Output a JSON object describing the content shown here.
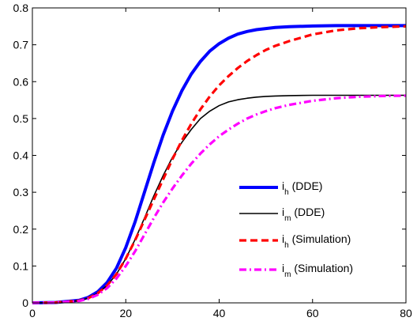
{
  "chart_data": {
    "type": "line",
    "title": "",
    "xlabel": "",
    "ylabel": "",
    "xlim": [
      0,
      80
    ],
    "ylim": [
      0,
      0.8
    ],
    "xticks": [
      0,
      20,
      40,
      60,
      80
    ],
    "yticks": [
      0,
      0.1,
      0.2,
      0.3,
      0.4,
      0.5,
      0.6,
      0.7,
      0.8
    ],
    "grid": false,
    "legend_position": "right",
    "series": [
      {
        "name_main": "i",
        "name_sub": "h",
        "name_suffix": " (DDE)",
        "color": "#0000ff",
        "style": "solid-thick",
        "x": [
          0,
          5,
          10,
          12,
          14,
          16,
          18,
          20,
          22,
          24,
          26,
          28,
          30,
          32,
          34,
          36,
          38,
          40,
          42,
          44,
          46,
          48,
          50,
          52,
          55,
          60,
          65,
          70,
          75,
          80
        ],
        "y": [
          0.0,
          0.001,
          0.007,
          0.015,
          0.03,
          0.055,
          0.094,
          0.15,
          0.22,
          0.3,
          0.38,
          0.455,
          0.52,
          0.575,
          0.62,
          0.655,
          0.683,
          0.703,
          0.718,
          0.729,
          0.736,
          0.741,
          0.744,
          0.747,
          0.749,
          0.751,
          0.752,
          0.752,
          0.752,
          0.752
        ]
      },
      {
        "name_main": "i",
        "name_sub": "m",
        "name_suffix": " (DDE)",
        "color": "#000000",
        "style": "solid-thin",
        "x": [
          0,
          5,
          10,
          12,
          14,
          16,
          18,
          20,
          22,
          24,
          26,
          28,
          30,
          32,
          34,
          36,
          38,
          40,
          42,
          44,
          46,
          48,
          50,
          52,
          55,
          60,
          65,
          70,
          75,
          80
        ],
        "y": [
          0.0,
          0.001,
          0.006,
          0.013,
          0.026,
          0.047,
          0.078,
          0.12,
          0.172,
          0.23,
          0.29,
          0.345,
          0.395,
          0.435,
          0.47,
          0.5,
          0.52,
          0.535,
          0.545,
          0.551,
          0.555,
          0.558,
          0.56,
          0.561,
          0.562,
          0.563,
          0.563,
          0.563,
          0.563,
          0.563
        ]
      },
      {
        "name_main": "i",
        "name_sub": "h",
        "name_suffix": " (Simulation)",
        "color": "#ff0000",
        "style": "dashed-thick",
        "x": [
          0,
          5,
          10,
          12,
          14,
          16,
          18,
          20,
          22,
          24,
          26,
          28,
          30,
          32,
          34,
          36,
          38,
          40,
          42,
          44,
          46,
          48,
          50,
          52,
          55,
          60,
          65,
          70,
          75,
          80
        ],
        "y": [
          0.0,
          0.001,
          0.006,
          0.013,
          0.026,
          0.047,
          0.078,
          0.12,
          0.17,
          0.225,
          0.28,
          0.335,
          0.39,
          0.44,
          0.485,
          0.525,
          0.56,
          0.59,
          0.615,
          0.637,
          0.656,
          0.672,
          0.686,
          0.697,
          0.71,
          0.728,
          0.739,
          0.745,
          0.748,
          0.75
        ]
      },
      {
        "name_main": "i",
        "name_sub": "m",
        "name_suffix": " (Simulation)",
        "color": "#ff00ff",
        "style": "dashdot-thick",
        "x": [
          0,
          5,
          10,
          12,
          14,
          16,
          18,
          20,
          22,
          24,
          26,
          28,
          30,
          32,
          34,
          36,
          38,
          40,
          42,
          44,
          46,
          48,
          50,
          52,
          55,
          60,
          65,
          70,
          75,
          80
        ],
        "y": [
          0.0,
          0.001,
          0.005,
          0.011,
          0.022,
          0.04,
          0.066,
          0.1,
          0.14,
          0.185,
          0.23,
          0.272,
          0.31,
          0.345,
          0.377,
          0.405,
          0.43,
          0.452,
          0.47,
          0.486,
          0.5,
          0.511,
          0.52,
          0.528,
          0.537,
          0.548,
          0.555,
          0.559,
          0.561,
          0.562
        ]
      }
    ]
  }
}
